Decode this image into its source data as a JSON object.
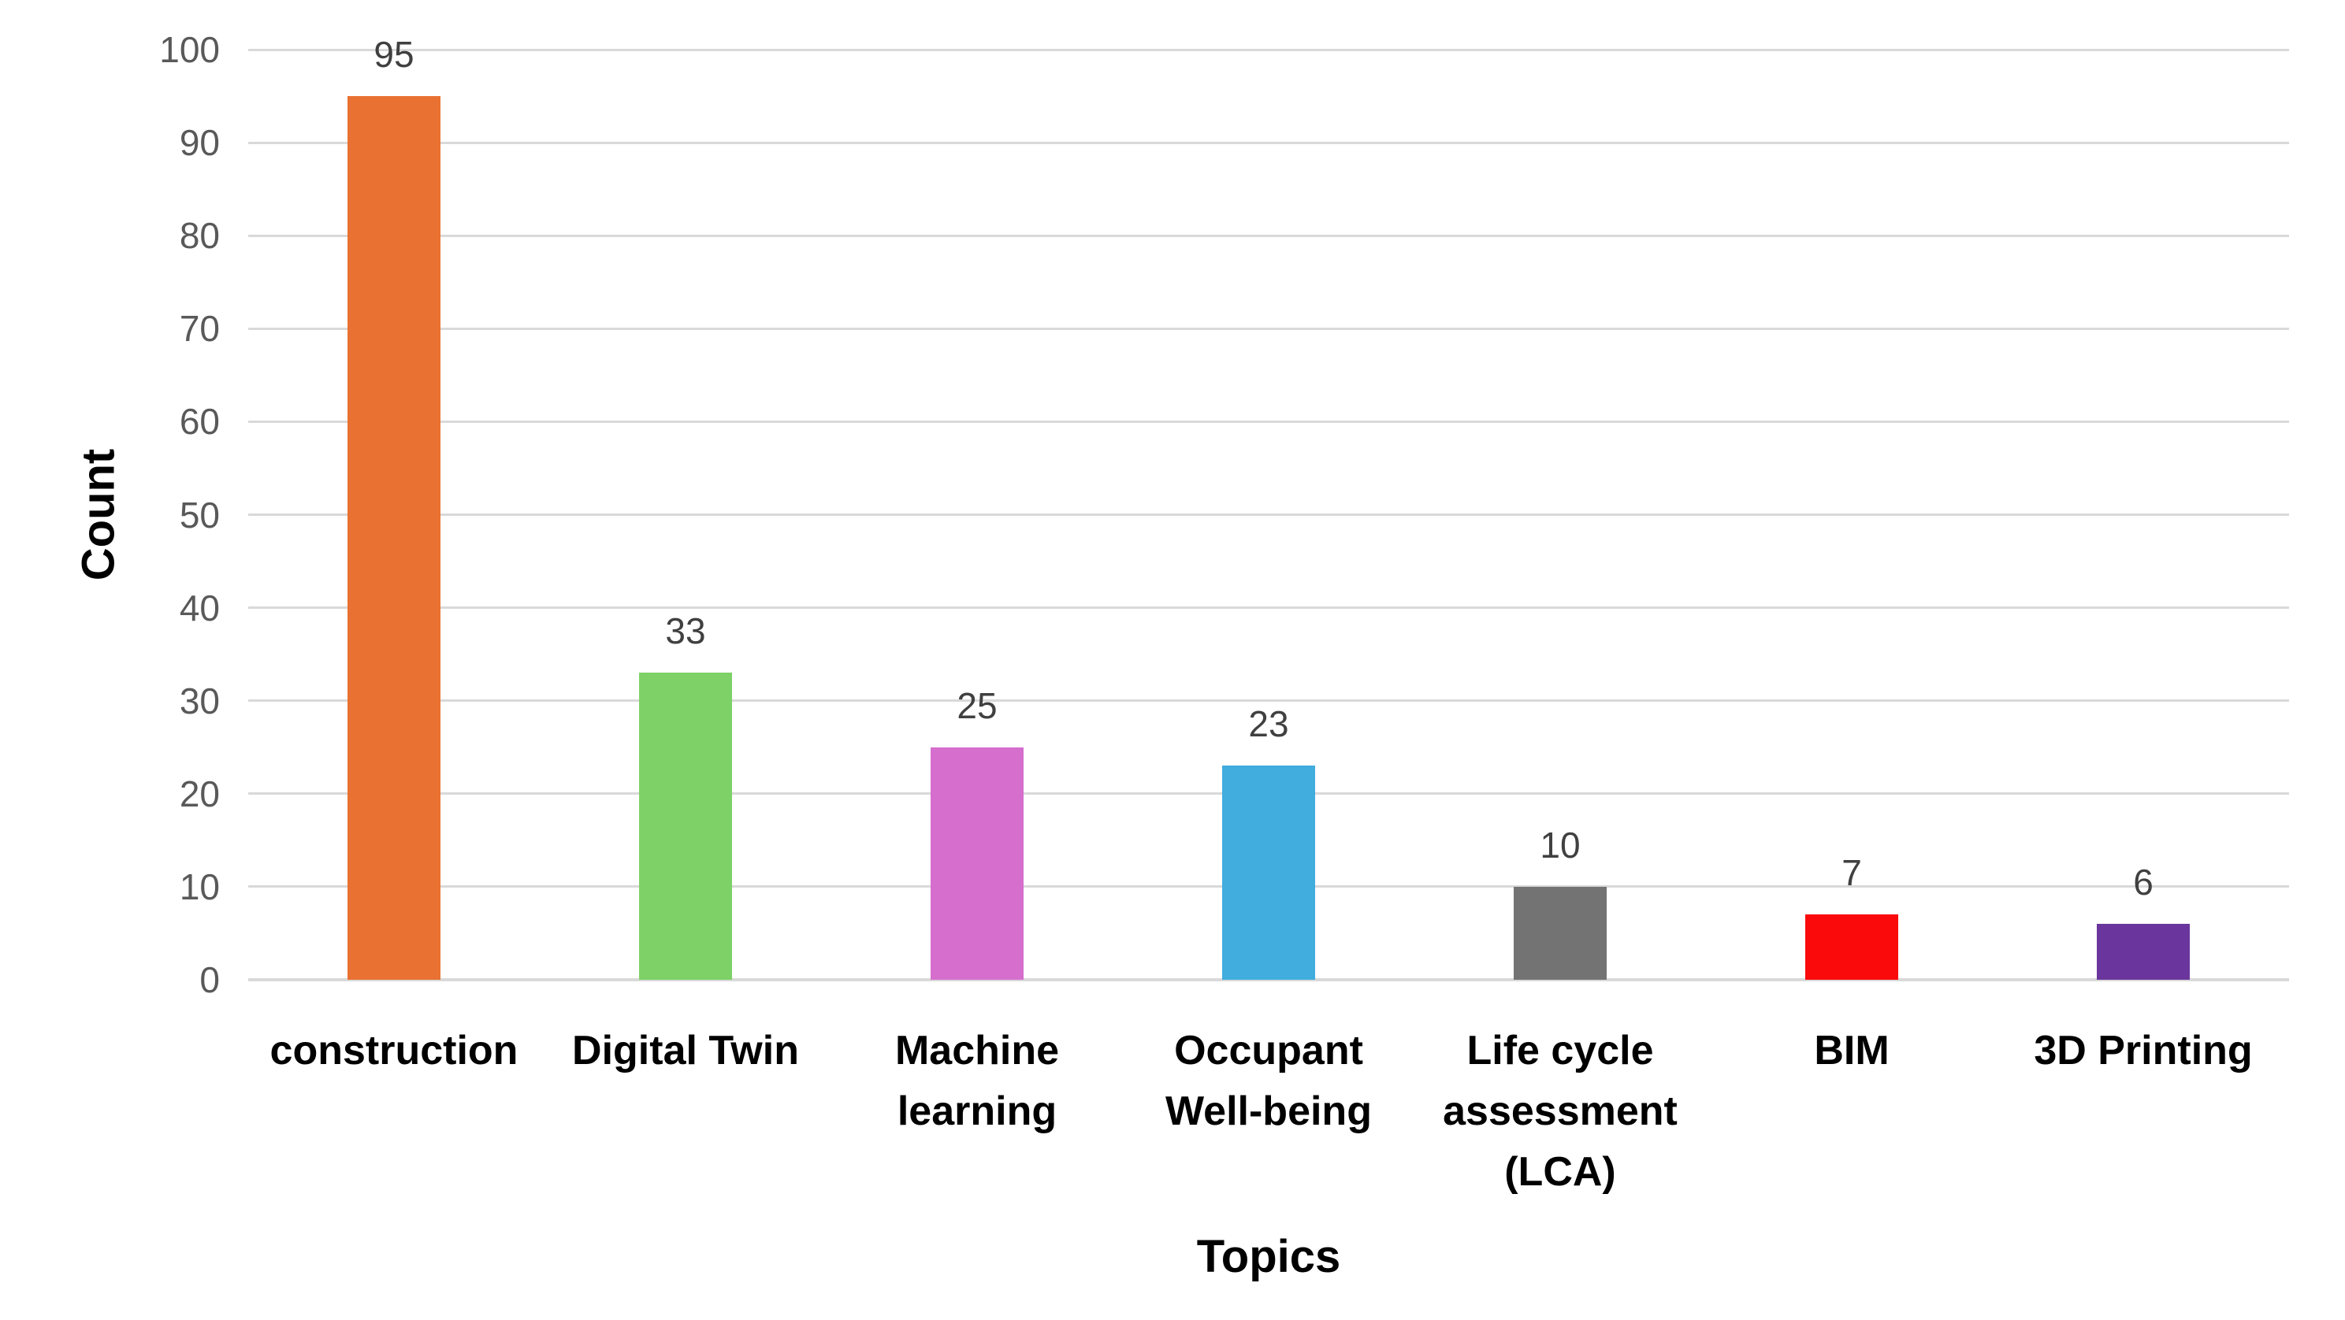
{
  "chart_data": {
    "type": "bar",
    "xlabel": "Topics",
    "ylabel": "Count",
    "categories": [
      "construction",
      "Digital Twin",
      "Machine learning",
      "Occupant Well-being",
      "Life cycle assessment (LCA)",
      "BIM",
      "3D Printing"
    ],
    "values": [
      95,
      33,
      25,
      23,
      10,
      7,
      6
    ],
    "bar_colors": [
      "#E97132",
      "#7DD166",
      "#D66ECE",
      "#41ACDE",
      "#737373",
      "#FA0A0A",
      "#6A359C"
    ],
    "ylim": [
      0,
      100
    ],
    "y_ticks": [
      0,
      10,
      20,
      30,
      40,
      50,
      60,
      70,
      80,
      90,
      100
    ],
    "grid": true,
    "legend": false,
    "value_labels_shown": true
  },
  "style_colors": {
    "background": "#FFFFFF",
    "gridline": "#D9D9D9",
    "axis_line": "#D9D9D9",
    "tick_label": "#595959",
    "value_label": "#404040",
    "category_label": "#000000"
  }
}
